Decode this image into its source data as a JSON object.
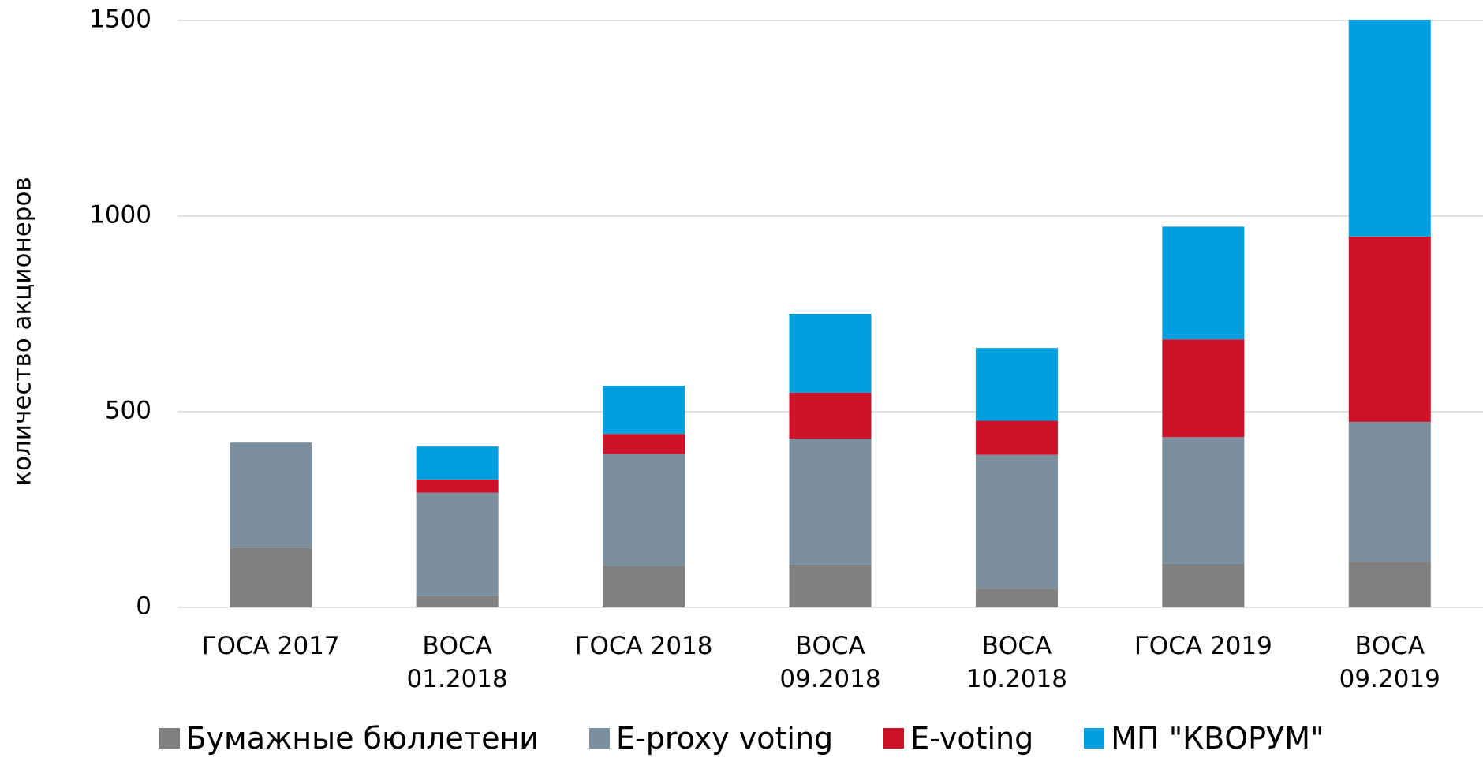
{
  "chart_data": {
    "type": "stacked_bar",
    "y_label": "количество акционеров",
    "categories": [
      "ГОСА 2017",
      "ВОСА\n01.2018",
      "ГОСА 2018",
      "ВОСА\n09.2018",
      "ВОСА\n10.2018",
      "ГОСА 2019",
      "ВОСА\n09.2019"
    ],
    "series": [
      {
        "name": "Бумажные бюллетени",
        "color": "#808080",
        "values": [
          152,
          29,
          106,
          109,
          48,
          111,
          116
        ]
      },
      {
        "name": "E-proxy voting",
        "color": "#7b8f9e",
        "values": [
          269,
          264,
          286,
          322,
          342,
          324,
          358
        ]
      },
      {
        "name": "E-voting",
        "color": "#cc1229",
        "values": [
          0,
          34,
          51,
          118,
          87,
          250,
          474
        ]
      },
      {
        "name": "МП \"КВОРУМ\"",
        "color": "#00a0e0",
        "values": [
          0,
          84,
          123,
          201,
          186,
          288,
          554
        ]
      }
    ],
    "ylim": [
      0,
      1500
    ],
    "yticks": [
      0,
      500,
      1000,
      1500
    ],
    "grid": true
  }
}
